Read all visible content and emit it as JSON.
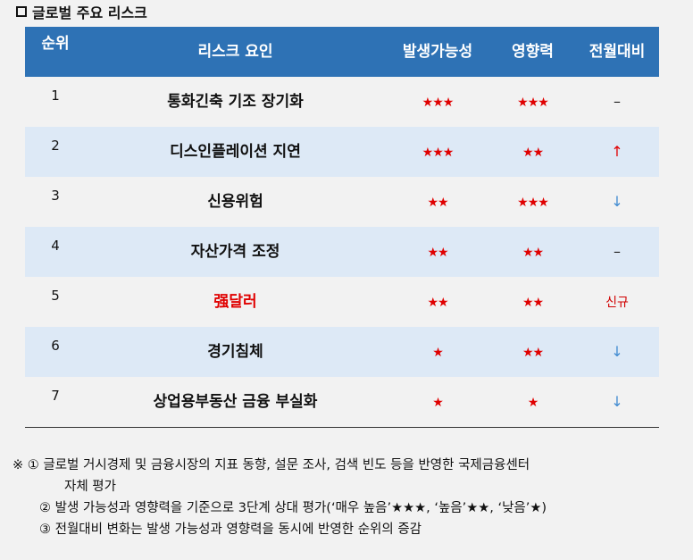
{
  "title": "글로벌 주요 리스크",
  "headers": [
    "순위",
    "리스크 요인",
    "발생가능성",
    "영향력",
    "전월대비"
  ],
  "rows": [
    {
      "rank": "1",
      "factor": "통화긴축 기조 장기화",
      "likelihood": "★★★",
      "impact": "★★★",
      "change": "–",
      "change_type": "same"
    },
    {
      "rank": "2",
      "factor": "디스인플레이션 지연",
      "likelihood": "★★★",
      "impact": "★★",
      "change": "↑",
      "change_type": "up"
    },
    {
      "rank": "3",
      "factor": "신용위험",
      "likelihood": "★★",
      "impact": "★★★",
      "change": "↓",
      "change_type": "down"
    },
    {
      "rank": "4",
      "factor": "자산가격 조정",
      "likelihood": "★★",
      "impact": "★★",
      "change": "–",
      "change_type": "same"
    },
    {
      "rank": "5",
      "factor": "强달러",
      "likelihood": "★★",
      "impact": "★★",
      "change": "신규",
      "change_type": "new",
      "highlight": true
    },
    {
      "rank": "6",
      "factor": "경기침체",
      "likelihood": "★",
      "impact": "★★",
      "change": "↓",
      "change_type": "down"
    },
    {
      "rank": "7",
      "factor": "상업용부동산 금융 부실화",
      "likelihood": "★",
      "impact": "★",
      "change": "↓",
      "change_type": "down"
    }
  ],
  "notes": [
    "※ ① 글로벌 거시경제 및 금융시장의 지표 동향, 설문 조사, 검색 빈도 등을 반영한 국제금융센터",
    "자체 평가",
    "② 발생 가능성과 영향력을 기준으로 3단계 상대 평가(‘매우 높음’★★★, ‘높음’★★, ‘낮음’★)",
    "③ 전월대비 변화는 발생 가능성과 영향력을 동시에 반영한 순위의 증감"
  ],
  "colors": {
    "header": "#2e72b5",
    "alt_row": "#dde9f6",
    "star": "#e00000",
    "up": "#e00000",
    "down": "#3f8ad0"
  }
}
